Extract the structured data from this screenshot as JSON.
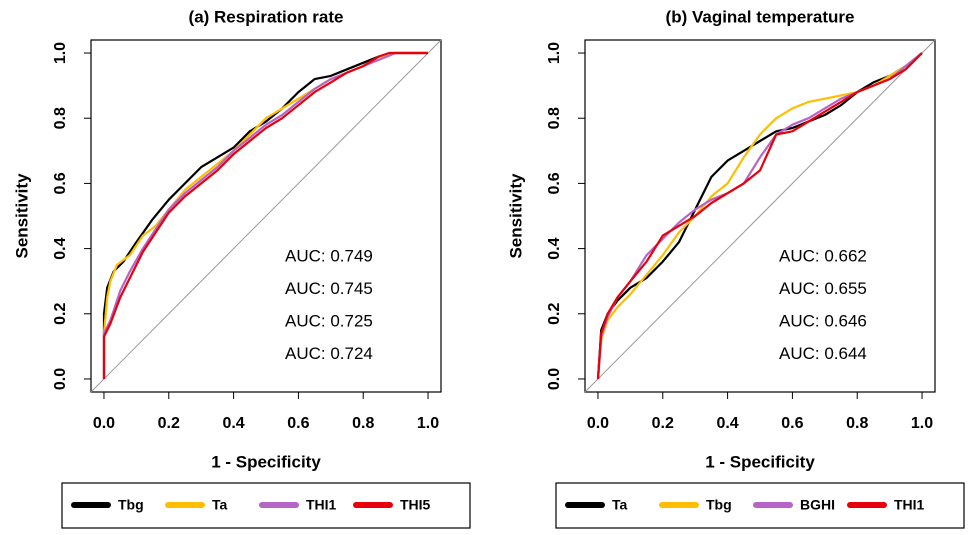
{
  "chart_data": [
    {
      "type": "line",
      "title": "(a) Respiration rate",
      "xlabel": "1 - Specificity",
      "ylabel": "Sensitivity",
      "xlim": [
        -0.04,
        1.04
      ],
      "ylim": [
        -0.04,
        1.04
      ],
      "xticks": [
        {
          "value": 0,
          "label": "0.0"
        },
        0.2,
        0.4,
        0.6,
        0.8,
        {
          "value": 1,
          "label": "1.0"
        }
      ],
      "yticks": [
        {
          "value": 0,
          "label": "0.0"
        },
        0.2,
        0.4,
        0.6,
        0.8,
        {
          "value": 1,
          "label": "1.0"
        }
      ],
      "diagonal": true,
      "legend": "bottom",
      "series": [
        {
          "name": "Tbg",
          "color": "#000000",
          "x": [
            0,
            0,
            0.01,
            0.03,
            0.06,
            0.1,
            0.15,
            0.2,
            0.25,
            0.3,
            0.35,
            0.4,
            0.45,
            0.5,
            0.55,
            0.6,
            0.65,
            0.7,
            0.75,
            0.8,
            0.85,
            0.9,
            1
          ],
          "values": [
            0,
            0.2,
            0.28,
            0.33,
            0.36,
            0.42,
            0.49,
            0.55,
            0.6,
            0.65,
            0.68,
            0.71,
            0.76,
            0.79,
            0.83,
            0.88,
            0.92,
            0.93,
            0.95,
            0.97,
            0.99,
            1,
            1
          ]
        },
        {
          "name": "Ta",
          "color": "#ffbf00",
          "x": [
            0,
            0.01,
            0.02,
            0.04,
            0.08,
            0.12,
            0.16,
            0.2,
            0.25,
            0.3,
            0.35,
            0.4,
            0.45,
            0.5,
            0.55,
            0.6,
            0.65,
            0.7,
            0.75,
            0.8,
            0.85,
            0.9,
            1
          ],
          "values": [
            0.14,
            0.25,
            0.3,
            0.35,
            0.38,
            0.44,
            0.47,
            0.52,
            0.58,
            0.62,
            0.66,
            0.7,
            0.75,
            0.8,
            0.83,
            0.86,
            0.89,
            0.92,
            0.94,
            0.96,
            0.99,
            1,
            1
          ]
        },
        {
          "name": "THI1",
          "color": "#b565c7",
          "x": [
            0,
            0,
            0.02,
            0.05,
            0.08,
            0.12,
            0.16,
            0.2,
            0.25,
            0.3,
            0.35,
            0.4,
            0.45,
            0.5,
            0.55,
            0.6,
            0.65,
            0.7,
            0.75,
            0.8,
            0.85,
            0.9,
            1
          ],
          "values": [
            0,
            0.14,
            0.18,
            0.27,
            0.33,
            0.4,
            0.46,
            0.52,
            0.57,
            0.61,
            0.65,
            0.7,
            0.74,
            0.78,
            0.81,
            0.85,
            0.89,
            0.92,
            0.94,
            0.96,
            0.98,
            1,
            1
          ]
        },
        {
          "name": "THI5",
          "color": "#e8000b",
          "x": [
            0,
            0,
            0.02,
            0.05,
            0.08,
            0.12,
            0.16,
            0.2,
            0.25,
            0.3,
            0.35,
            0.4,
            0.45,
            0.5,
            0.55,
            0.6,
            0.65,
            0.7,
            0.75,
            0.8,
            0.85,
            0.88,
            1
          ],
          "values": [
            0,
            0.13,
            0.17,
            0.25,
            0.31,
            0.39,
            0.45,
            0.51,
            0.56,
            0.6,
            0.64,
            0.69,
            0.73,
            0.77,
            0.8,
            0.84,
            0.88,
            0.91,
            0.94,
            0.96,
            0.99,
            1,
            1
          ]
        }
      ],
      "annotations": [
        {
          "text": "AUC: 0.749",
          "color": "#000000"
        },
        {
          "text": "AUC: 0.745",
          "color": "#ffbf00"
        },
        {
          "text": "AUC: 0.725",
          "color": "#b565c7"
        },
        {
          "text": "AUC: 0.724",
          "color": "#e8000b"
        }
      ]
    },
    {
      "type": "line",
      "title": "(b) Vaginal temperature",
      "xlabel": "1 - Specificity",
      "ylabel": "Sensitivity",
      "xlim": [
        -0.04,
        1.04
      ],
      "ylim": [
        -0.04,
        1.04
      ],
      "xticks": [
        {
          "value": 0,
          "label": "0.0"
        },
        0.2,
        0.4,
        0.6,
        0.8,
        {
          "value": 1,
          "label": "1.0"
        }
      ],
      "yticks": [
        {
          "value": 0,
          "label": "0.0"
        },
        0.2,
        0.4,
        0.6,
        0.8,
        {
          "value": 1,
          "label": "1.0"
        }
      ],
      "diagonal": true,
      "legend": "bottom",
      "series": [
        {
          "name": "Ta",
          "color": "#000000",
          "x": [
            0,
            0.01,
            0.03,
            0.06,
            0.1,
            0.15,
            0.2,
            0.25,
            0.3,
            0.35,
            0.4,
            0.45,
            0.5,
            0.55,
            0.6,
            0.65,
            0.7,
            0.75,
            0.8,
            0.85,
            0.9,
            0.95,
            1
          ],
          "values": [
            0,
            0.15,
            0.2,
            0.24,
            0.28,
            0.31,
            0.36,
            0.42,
            0.52,
            0.62,
            0.67,
            0.7,
            0.73,
            0.76,
            0.77,
            0.79,
            0.81,
            0.84,
            0.88,
            0.91,
            0.93,
            0.96,
            1
          ]
        },
        {
          "name": "Tbg",
          "color": "#ffbf00",
          "x": [
            0,
            0.01,
            0.03,
            0.06,
            0.1,
            0.15,
            0.2,
            0.25,
            0.3,
            0.35,
            0.4,
            0.45,
            0.5,
            0.55,
            0.6,
            0.65,
            0.7,
            0.75,
            0.8,
            0.85,
            0.9,
            0.95,
            1
          ],
          "values": [
            0,
            0.12,
            0.18,
            0.22,
            0.26,
            0.32,
            0.38,
            0.45,
            0.5,
            0.56,
            0.6,
            0.68,
            0.75,
            0.8,
            0.83,
            0.85,
            0.86,
            0.87,
            0.88,
            0.9,
            0.93,
            0.96,
            1
          ]
        },
        {
          "name": "BGHI",
          "color": "#b565c7",
          "x": [
            0,
            0.01,
            0.03,
            0.06,
            0.1,
            0.15,
            0.2,
            0.25,
            0.3,
            0.35,
            0.4,
            0.45,
            0.5,
            0.55,
            0.6,
            0.65,
            0.7,
            0.75,
            0.8,
            0.85,
            0.9,
            0.95,
            1
          ],
          "values": [
            0,
            0.13,
            0.19,
            0.25,
            0.3,
            0.38,
            0.43,
            0.48,
            0.52,
            0.55,
            0.57,
            0.6,
            0.68,
            0.75,
            0.78,
            0.8,
            0.83,
            0.86,
            0.88,
            0.9,
            0.92,
            0.96,
            1
          ]
        },
        {
          "name": "THI1",
          "color": "#e8000b",
          "x": [
            0,
            0.01,
            0.03,
            0.06,
            0.1,
            0.15,
            0.2,
            0.25,
            0.3,
            0.35,
            0.4,
            0.45,
            0.5,
            0.55,
            0.6,
            0.65,
            0.7,
            0.75,
            0.8,
            0.85,
            0.9,
            0.95,
            1
          ],
          "values": [
            0,
            0.14,
            0.2,
            0.25,
            0.3,
            0.36,
            0.44,
            0.47,
            0.5,
            0.54,
            0.57,
            0.6,
            0.64,
            0.75,
            0.76,
            0.79,
            0.82,
            0.85,
            0.88,
            0.9,
            0.92,
            0.95,
            1
          ]
        }
      ],
      "annotations": [
        {
          "text": "AUC: 0.662",
          "color": "#000000"
        },
        {
          "text": "AUC: 0.655",
          "color": "#ffbf00"
        },
        {
          "text": "AUC: 0.646",
          "color": "#b565c7"
        },
        {
          "text": "AUC: 0.644",
          "color": "#e8000b"
        }
      ]
    }
  ]
}
